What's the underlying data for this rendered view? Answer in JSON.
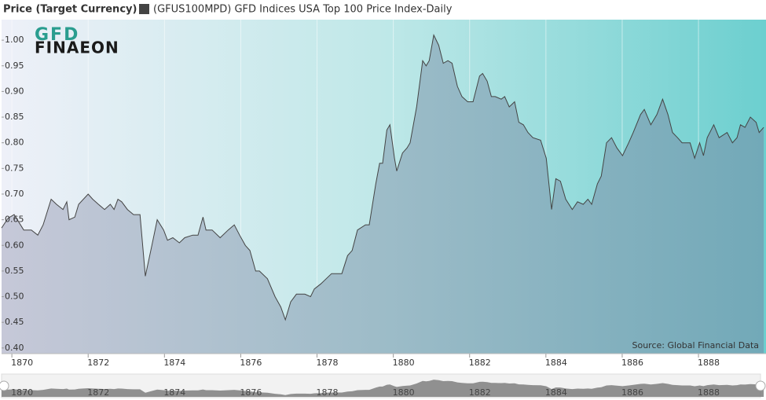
{
  "logo": [
    "GFD",
    "FINAEON"
  ],
  "chart_data": {
    "type": "area",
    "title": "Price (Target Currency)",
    "source": "Source: Global Financial Data",
    "grid": "x",
    "xlim": [
      1869.73,
      1889.77
    ],
    "xticks": [
      1870,
      1872,
      1874,
      1876,
      1878,
      1880,
      1882,
      1884,
      1886,
      1888
    ],
    "ylim": [
      0.389,
      1.04
    ],
    "yticks": [
      {
        "value": 0.4,
        "label": "0.40"
      },
      0.45,
      {
        "value": 0.5,
        "label": "0.50"
      },
      0.55,
      {
        "value": 0.6,
        "label": "0.60"
      },
      0.65,
      {
        "value": 0.7,
        "label": "0.70"
      },
      0.75,
      {
        "value": 0.8,
        "label": "0.80"
      },
      0.85,
      {
        "value": 0.9,
        "label": "0.90"
      },
      0.95,
      {
        "value": 1.0,
        "label": "1.00"
      }
    ],
    "x": [
      1869.73,
      1869.9,
      1870.06,
      1870.31,
      1870.51,
      1870.68,
      1870.82,
      1871.03,
      1871.17,
      1871.34,
      1871.44,
      1871.5,
      1871.65,
      1871.75,
      1872.0,
      1872.12,
      1872.27,
      1872.43,
      1872.58,
      1872.68,
      1872.78,
      1872.88,
      1873.03,
      1873.19,
      1873.36,
      1873.5,
      1873.67,
      1873.81,
      1873.98,
      1874.08,
      1874.22,
      1874.39,
      1874.53,
      1874.74,
      1874.88,
      1875.01,
      1875.09,
      1875.25,
      1875.46,
      1875.67,
      1875.83,
      1875.97,
      1876.12,
      1876.24,
      1876.39,
      1876.49,
      1876.7,
      1876.9,
      1877.05,
      1877.17,
      1877.31,
      1877.46,
      1877.68,
      1877.83,
      1877.93,
      1878.1,
      1878.24,
      1878.38,
      1878.65,
      1878.8,
      1878.92,
      1879.06,
      1879.27,
      1879.37,
      1879.54,
      1879.64,
      1879.72,
      1879.83,
      1879.91,
      1880.03,
      1880.09,
      1880.24,
      1880.36,
      1880.44,
      1880.61,
      1880.77,
      1880.86,
      1880.94,
      1881.06,
      1881.19,
      1881.31,
      1881.43,
      1881.54,
      1881.68,
      1881.8,
      1881.95,
      1882.09,
      1882.26,
      1882.34,
      1882.46,
      1882.57,
      1882.67,
      1882.83,
      1882.92,
      1883.04,
      1883.18,
      1883.29,
      1883.41,
      1883.53,
      1883.66,
      1883.86,
      1884.01,
      1884.15,
      1884.26,
      1884.38,
      1884.52,
      1884.69,
      1884.83,
      1884.98,
      1885.1,
      1885.2,
      1885.35,
      1885.45,
      1885.59,
      1885.72,
      1885.86,
      1886.01,
      1886.17,
      1886.29,
      1886.48,
      1886.58,
      1886.75,
      1886.91,
      1887.06,
      1887.2,
      1887.32,
      1887.45,
      1887.57,
      1887.78,
      1887.9,
      1888.03,
      1888.13,
      1888.23,
      1888.4,
      1888.54,
      1888.75,
      1888.89,
      1889.01,
      1889.1,
      1889.22,
      1889.36,
      1889.51,
      1889.59,
      1889.71
    ],
    "series": [
      {
        "name": "(GFUS100MPD) GFD Indices USA Top 100 Price Index-Daily",
        "color": "#444444",
        "values": [
          0.634,
          0.653,
          0.66,
          0.63,
          0.63,
          0.62,
          0.64,
          0.69,
          0.68,
          0.67,
          0.685,
          0.65,
          0.655,
          0.68,
          0.7,
          0.69,
          0.68,
          0.67,
          0.68,
          0.67,
          0.69,
          0.685,
          0.67,
          0.66,
          0.66,
          0.54,
          0.6,
          0.65,
          0.63,
          0.61,
          0.615,
          0.605,
          0.615,
          0.62,
          0.62,
          0.655,
          0.63,
          0.63,
          0.615,
          0.63,
          0.64,
          0.62,
          0.6,
          0.59,
          0.55,
          0.55,
          0.535,
          0.5,
          0.48,
          0.455,
          0.49,
          0.505,
          0.505,
          0.5,
          0.515,
          0.525,
          0.535,
          0.545,
          0.545,
          0.58,
          0.59,
          0.63,
          0.64,
          0.64,
          0.72,
          0.76,
          0.76,
          0.825,
          0.835,
          0.77,
          0.745,
          0.78,
          0.79,
          0.8,
          0.87,
          0.96,
          0.95,
          0.96,
          1.01,
          0.99,
          0.955,
          0.96,
          0.955,
          0.91,
          0.89,
          0.88,
          0.88,
          0.93,
          0.935,
          0.92,
          0.89,
          0.89,
          0.885,
          0.89,
          0.87,
          0.88,
          0.84,
          0.835,
          0.82,
          0.81,
          0.805,
          0.77,
          0.67,
          0.73,
          0.725,
          0.69,
          0.67,
          0.685,
          0.68,
          0.69,
          0.68,
          0.72,
          0.735,
          0.8,
          0.81,
          0.79,
          0.775,
          0.8,
          0.82,
          0.855,
          0.865,
          0.835,
          0.855,
          0.885,
          0.855,
          0.82,
          0.81,
          0.8,
          0.8,
          0.77,
          0.8,
          0.775,
          0.81,
          0.835,
          0.81,
          0.82,
          0.8,
          0.81,
          0.835,
          0.83,
          0.85,
          0.84,
          0.82,
          0.83
        ]
      }
    ]
  }
}
